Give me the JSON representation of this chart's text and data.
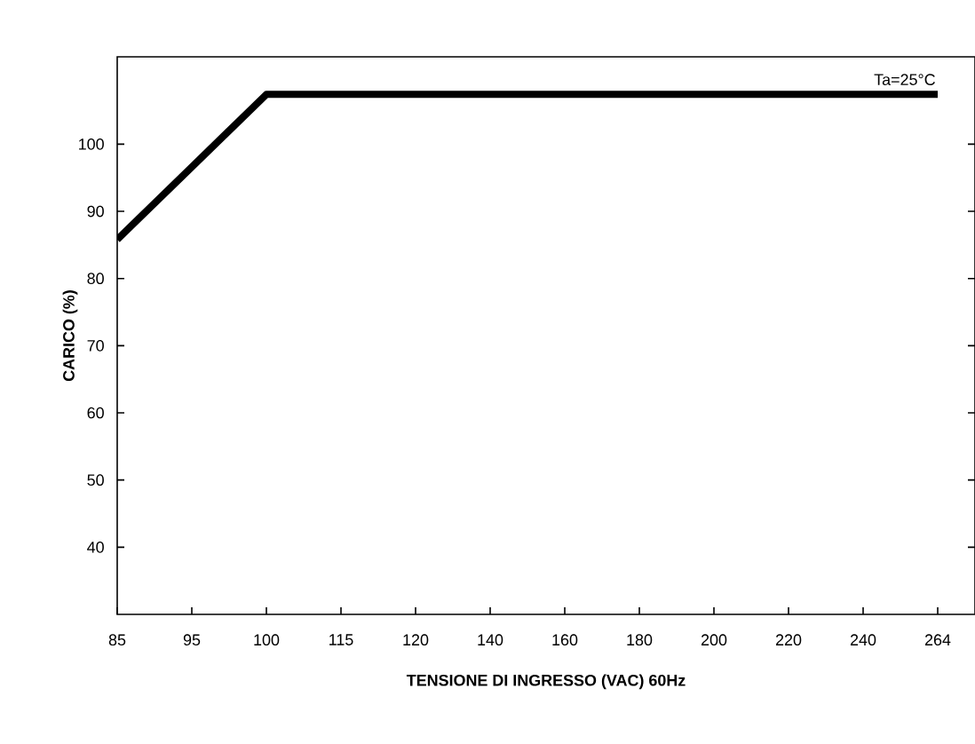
{
  "chart_data": {
    "type": "line",
    "xlabel": "TENSIONE DI INGRESSO (VAC) 60Hz",
    "ylabel": "CARICO (%)",
    "categories": [
      "85",
      "95",
      "100",
      "115",
      "120",
      "140",
      "160",
      "180",
      "200",
      "220",
      "240",
      "264"
    ],
    "values": [
      85.8,
      96.6,
      107.4,
      107.4,
      107.4,
      107.4,
      107.4,
      107.4,
      107.4,
      107.4,
      107.4,
      107.4
    ],
    "color": "#000000",
    "ylim": [
      30,
      113
    ],
    "yticks": [
      40,
      50,
      60,
      70,
      80,
      90,
      100
    ],
    "annotations": [
      {
        "text": "Ta=25°C",
        "x": "264",
        "y": 107.4
      }
    ],
    "grid": false,
    "marker": "none",
    "line_style": "solid"
  }
}
